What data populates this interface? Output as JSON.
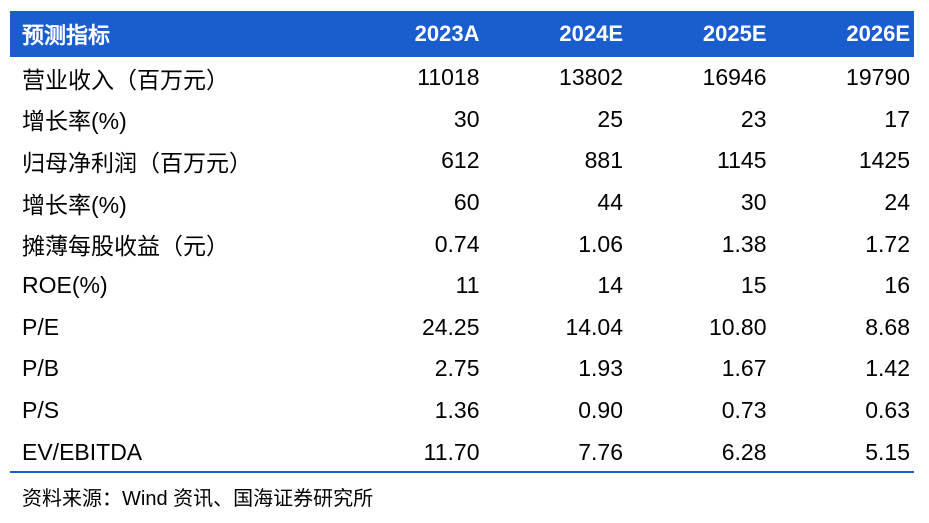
{
  "table": {
    "header": [
      "预测指标",
      "2023A",
      "2024E",
      "2025E",
      "2026E"
    ],
    "rows": [
      {
        "label": "营业收入（百万元）",
        "values": [
          "11018",
          "13802",
          "16946",
          "19790"
        ]
      },
      {
        "label": "增长率(%)",
        "values": [
          "30",
          "25",
          "23",
          "17"
        ]
      },
      {
        "label": "归母净利润（百万元）",
        "values": [
          "612",
          "881",
          "1145",
          "1425"
        ]
      },
      {
        "label": "增长率(%)",
        "values": [
          "60",
          "44",
          "30",
          "24"
        ]
      },
      {
        "label": "摊薄每股收益（元）",
        "values": [
          "0.74",
          "1.06",
          "1.38",
          "1.72"
        ]
      },
      {
        "label": "ROE(%)",
        "values": [
          "11",
          "14",
          "15",
          "16"
        ]
      },
      {
        "label": "P/E",
        "values": [
          "24.25",
          "14.04",
          "10.80",
          "8.68"
        ]
      },
      {
        "label": "P/B",
        "values": [
          "2.75",
          "1.93",
          "1.67",
          "1.42"
        ]
      },
      {
        "label": "P/S",
        "values": [
          "1.36",
          "0.90",
          "0.73",
          "0.63"
        ]
      },
      {
        "label": "EV/EBITDA",
        "values": [
          "11.70",
          "7.76",
          "6.28",
          "5.15"
        ]
      }
    ]
  },
  "source": "资料来源：Wind 资讯、国海证券研究所",
  "colors": {
    "header_bg": "#1a5dcf",
    "header_text": "#ffffff",
    "rule": "#1a5dcf"
  }
}
